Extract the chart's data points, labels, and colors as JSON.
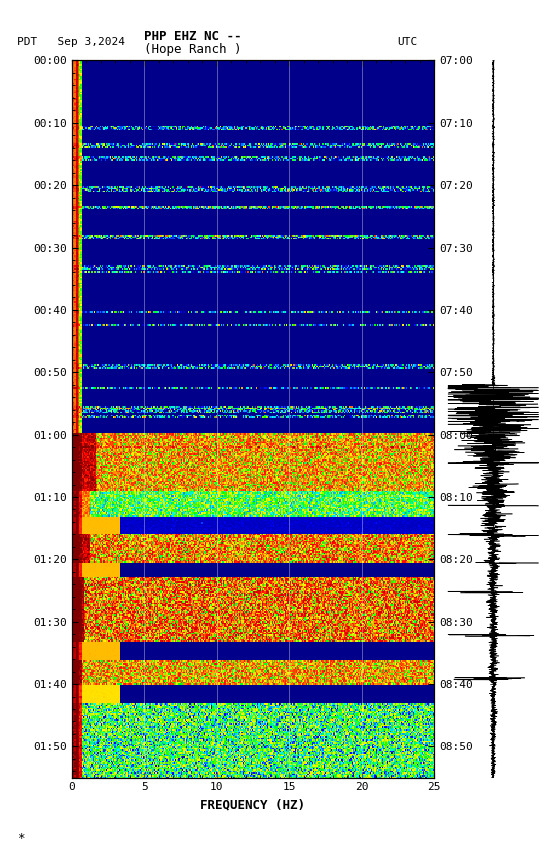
{
  "title_line1": "PHP EHZ NC --",
  "title_line2": "(Hope Ranch )",
  "left_label": "PDT   Sep 3,2024",
  "right_label": "UTC",
  "xlabel": "FREQUENCY (HZ)",
  "xlim": [
    0,
    25
  ],
  "x_ticks": [
    0,
    5,
    10,
    15,
    20,
    25
  ],
  "left_time_labels": [
    "00:00",
    "00:10",
    "00:20",
    "00:30",
    "00:40",
    "00:50",
    "01:00",
    "01:10",
    "01:20",
    "01:30",
    "01:40",
    "01:50"
  ],
  "right_time_labels": [
    "07:00",
    "07:10",
    "07:20",
    "07:30",
    "07:40",
    "07:50",
    "08:00",
    "08:10",
    "08:20",
    "08:30",
    "08:40",
    "08:50"
  ],
  "bg_color": "#ffffff"
}
